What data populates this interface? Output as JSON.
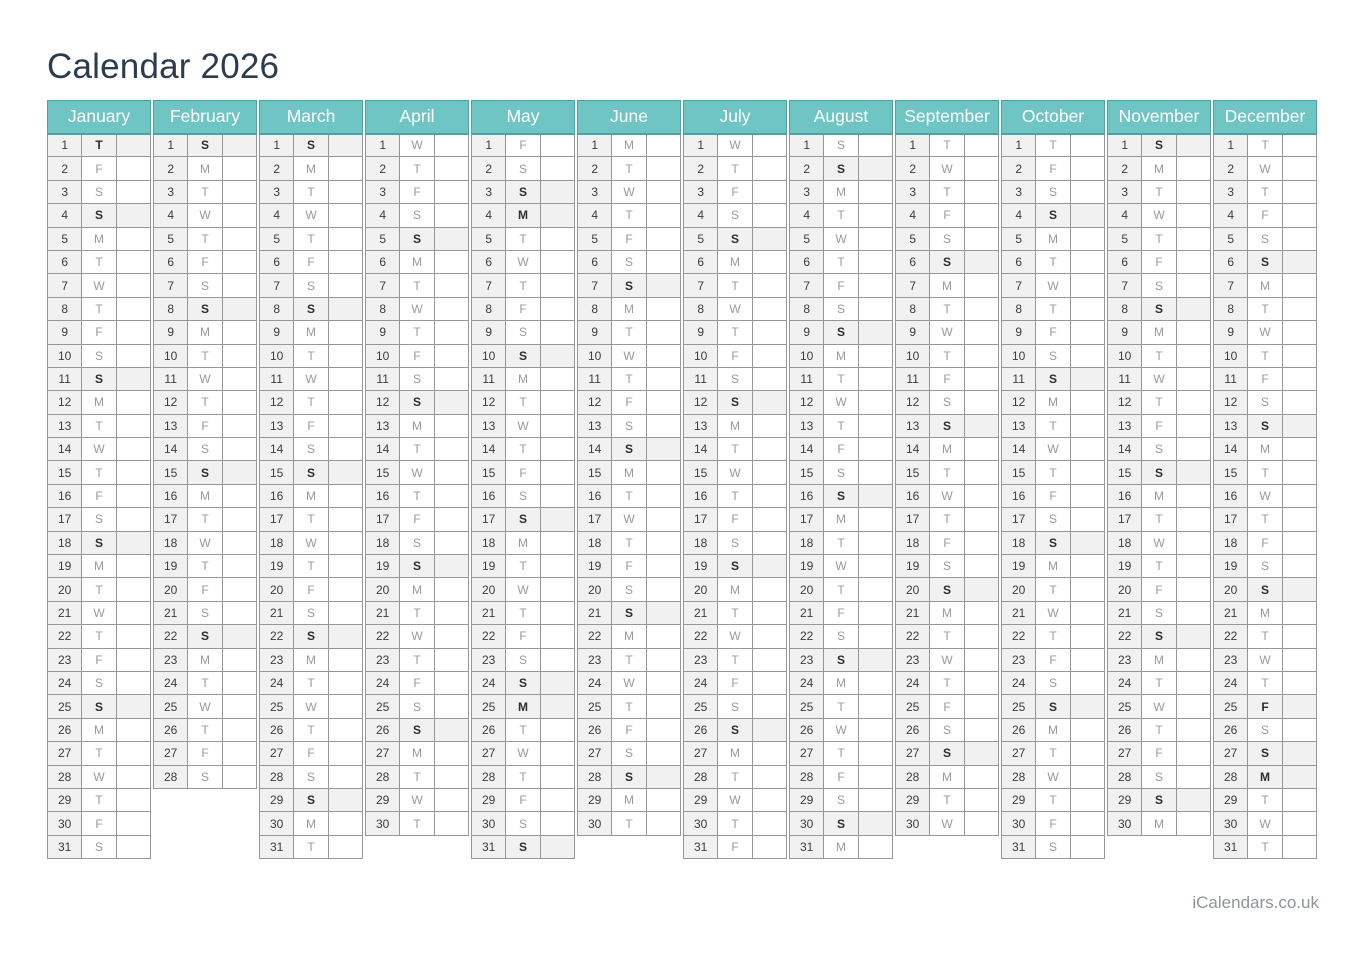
{
  "page": {
    "title": "Calendar 2026",
    "footer": "iCalendars.co.uk"
  },
  "colors": {
    "month_header_bg": "#6ec5c4",
    "month_header_border": "#46a5a6",
    "month_header_text": "#ffffff",
    "title_text": "#2b3c4f",
    "grid_border": "#979797",
    "highlight_row_bg": "#f1f1f1",
    "day_number_bg": "#f1f1f1",
    "day_number_text": "#3d3d3d",
    "weekday_text": "#9a9a9a",
    "weekday_highlight_text": "#2e2e2e",
    "footer_text": "#8f9496"
  },
  "calendar": {
    "year": "2026",
    "months": [
      {
        "name": "January",
        "days": 31,
        "weekday_letters": "TFSSMTWTFSSMTWTFSSMTWTFSSMTWTFS",
        "highlighted_days": [
          1,
          4,
          11,
          18,
          25
        ]
      },
      {
        "name": "February",
        "days": 28,
        "weekday_letters": "SMTWTFSSMTWTFSSMTWTFSSMTWTFS",
        "highlighted_days": [
          1,
          8,
          15,
          22
        ]
      },
      {
        "name": "March",
        "days": 31,
        "weekday_letters": "SMTWTFSSMTWTFSSMTWTFSSMTWTFSSMT",
        "highlighted_days": [
          1,
          8,
          15,
          22,
          29
        ]
      },
      {
        "name": "April",
        "days": 30,
        "weekday_letters": "WTFSSMTWTFSSMTWTFSSMTWTFSSMTWT",
        "highlighted_days": [
          5,
          12,
          19,
          26
        ]
      },
      {
        "name": "May",
        "days": 31,
        "weekday_letters": "FSSMTWTFSSMTWTFSSMTWTFSSMTWTFSS",
        "highlighted_days": [
          3,
          4,
          10,
          17,
          24,
          25,
          31
        ]
      },
      {
        "name": "June",
        "days": 30,
        "weekday_letters": "MTWTFSSMTWTFSSMTWTFSSMTWTFSSMT",
        "highlighted_days": [
          7,
          14,
          21,
          28
        ]
      },
      {
        "name": "July",
        "days": 31,
        "weekday_letters": "WTFSSMTWTFSSMTWTFSSMTWTFSSMTWTF",
        "highlighted_days": [
          5,
          12,
          19,
          26
        ]
      },
      {
        "name": "August",
        "days": 31,
        "weekday_letters": "SSMTWTFSSMTWTFSSMTWTFSSMTWTFSSM",
        "highlighted_days": [
          2,
          9,
          16,
          23,
          30
        ]
      },
      {
        "name": "September",
        "days": 30,
        "weekday_letters": "TWTFSSMTWTFSSMTWTFSSMTWTFSSMTW",
        "highlighted_days": [
          6,
          13,
          20,
          27
        ]
      },
      {
        "name": "October",
        "days": 31,
        "weekday_letters": "TFSSMTWTFSSMTWTFSSMTWTFSSMTWTFS",
        "highlighted_days": [
          4,
          11,
          18,
          25
        ]
      },
      {
        "name": "November",
        "days": 30,
        "weekday_letters": "SMTWTFSSMTWTFSSMTWTFSSMTWTFSSM",
        "highlighted_days": [
          1,
          8,
          15,
          22,
          29
        ]
      },
      {
        "name": "December",
        "days": 31,
        "weekday_letters": "TWTFSSMTWTFSSMTWTFSSMTWTFSSMTWT",
        "highlighted_days": [
          6,
          13,
          20,
          25,
          27,
          28
        ]
      }
    ]
  }
}
